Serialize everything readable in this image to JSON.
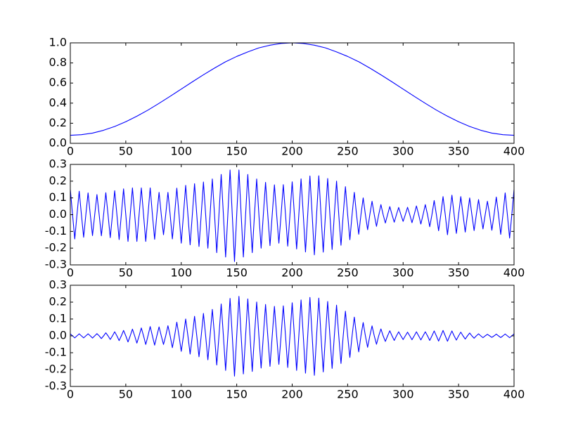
{
  "chart_data": [
    {
      "type": "line",
      "color": "#0000ff",
      "x": [
        0,
        10,
        20,
        30,
        40,
        50,
        60,
        70,
        80,
        90,
        100,
        110,
        120,
        130,
        140,
        150,
        160,
        170,
        180,
        190,
        200,
        210,
        220,
        230,
        240,
        250,
        260,
        270,
        280,
        290,
        300,
        310,
        320,
        330,
        340,
        350,
        360,
        370,
        380,
        390,
        400
      ],
      "values": [
        0.08,
        0.086,
        0.102,
        0.13,
        0.168,
        0.215,
        0.27,
        0.331,
        0.398,
        0.468,
        0.54,
        0.612,
        0.682,
        0.749,
        0.812,
        0.865,
        0.91,
        0.95,
        0.977,
        0.994,
        1.0,
        0.994,
        0.977,
        0.95,
        0.91,
        0.865,
        0.812,
        0.749,
        0.682,
        0.612,
        0.54,
        0.468,
        0.398,
        0.331,
        0.27,
        0.215,
        0.168,
        0.13,
        0.102,
        0.086,
        0.08
      ],
      "xlim": [
        0,
        400
      ],
      "xticks": [
        0,
        50,
        100,
        150,
        200,
        250,
        300,
        350,
        400
      ],
      "ylim": [
        0,
        1
      ],
      "yticks": [
        {
          "value": 0,
          "label": "0.0"
        },
        0.2,
        0.4,
        0.6,
        0.8,
        {
          "value": 1,
          "label": "1.0"
        }
      ]
    },
    {
      "type": "line",
      "color": "#0000ff",
      "x": [
        0,
        2,
        4,
        6,
        8,
        10,
        12,
        14,
        16,
        18,
        20,
        22,
        24,
        26,
        28,
        30,
        32,
        34,
        36,
        38,
        40,
        42,
        44,
        46,
        48,
        50,
        52,
        54,
        56,
        58,
        60,
        62,
        64,
        66,
        68,
        70,
        72,
        74,
        76,
        78,
        80,
        82,
        84,
        86,
        88,
        90,
        92,
        94,
        96,
        98,
        100,
        102,
        104,
        106,
        108,
        110,
        112,
        114,
        116,
        118,
        120,
        122,
        124,
        126,
        128,
        130,
        132,
        134,
        136,
        138,
        140,
        142,
        144,
        146,
        148,
        150,
        152,
        154,
        156,
        158,
        160,
        162,
        164,
        166,
        168,
        170,
        172,
        174,
        176,
        178,
        180,
        182,
        184,
        186,
        188,
        190,
        192,
        194,
        196,
        198,
        200,
        202,
        204,
        206,
        208,
        210,
        212,
        214,
        216,
        218,
        220,
        222,
        224,
        226,
        228,
        230,
        232,
        234,
        236,
        238,
        240,
        242,
        244,
        246,
        248,
        250,
        252,
        254,
        256,
        258,
        260,
        262,
        264,
        266,
        268,
        270,
        272,
        274,
        276,
        278,
        280,
        282,
        284,
        286,
        288,
        290,
        292,
        294,
        296,
        298,
        300,
        302,
        304,
        306,
        308,
        310,
        312,
        314,
        316,
        318,
        320,
        322,
        324,
        326,
        328,
        330,
        332,
        334,
        336,
        338,
        340,
        342,
        344,
        346,
        348,
        350,
        352,
        354,
        356,
        358,
        360,
        362,
        364,
        366,
        368,
        370,
        372,
        374,
        376,
        378,
        380,
        382,
        384,
        386,
        388,
        390,
        392,
        394,
        396,
        398,
        400
      ],
      "values": [
        0.15,
        0,
        -0.145,
        0,
        0.14,
        0,
        -0.135,
        0,
        0.13,
        0,
        -0.125,
        0,
        0.12,
        0,
        -0.126,
        0,
        0.131,
        0,
        -0.137,
        0,
        0.143,
        0,
        -0.149,
        0,
        0.154,
        0,
        -0.16,
        0,
        0.16,
        0,
        -0.16,
        0,
        0.16,
        0,
        -0.16,
        0,
        0.16,
        0,
        -0.147,
        0,
        0.133,
        0,
        -0.12,
        0,
        0.133,
        0,
        -0.145,
        0,
        0.158,
        0,
        -0.17,
        0,
        0.175,
        0,
        -0.18,
        0,
        0.185,
        0,
        -0.19,
        0,
        0.195,
        0,
        -0.2,
        0,
        0.213,
        0,
        -0.227,
        0,
        0.24,
        0,
        -0.253,
        0,
        0.267,
        0,
        -0.28,
        0,
        0.267,
        0,
        -0.253,
        0,
        0.24,
        0,
        -0.227,
        0,
        0.213,
        0,
        -0.2,
        0,
        0.193,
        0,
        -0.185,
        0,
        0.178,
        0,
        -0.17,
        0,
        0.179,
        0,
        -0.188,
        0,
        0.196,
        0,
        -0.205,
        0,
        0.214,
        0,
        -0.223,
        0,
        0.231,
        0,
        -0.24,
        0,
        0.232,
        0,
        -0.224,
        0,
        0.216,
        0,
        -0.208,
        0,
        0.2,
        0,
        -0.183,
        0,
        0.167,
        0,
        -0.15,
        0,
        0.133,
        0,
        -0.117,
        0,
        0.1,
        0,
        -0.09,
        0,
        0.08,
        0,
        -0.07,
        0,
        0.06,
        0,
        -0.05,
        0,
        0.048,
        0,
        -0.045,
        0,
        0.043,
        0,
        -0.04,
        0,
        0.044,
        0,
        -0.048,
        0,
        0.052,
        0,
        -0.056,
        0,
        0.06,
        0,
        -0.072,
        0,
        0.084,
        0,
        -0.096,
        0,
        0.108,
        0,
        -0.12,
        0,
        0.116,
        0,
        -0.112,
        0,
        0.108,
        0,
        -0.104,
        0,
        0.1,
        0,
        -0.095,
        0,
        0.09,
        0,
        -0.085,
        0,
        0.08,
        0,
        -0.093,
        0,
        0.105,
        0,
        -0.118,
        0,
        0.13,
        0,
        -0.14,
        0,
        0.15
      ],
      "xlim": [
        0,
        400
      ],
      "xticks": [
        0,
        50,
        100,
        150,
        200,
        250,
        300,
        350,
        400
      ],
      "ylim": [
        -0.3,
        0.3
      ],
      "yticks": [
        -0.3,
        -0.2,
        -0.1,
        {
          "value": 0,
          "label": "0.0"
        },
        0.1,
        0.2,
        0.3
      ]
    },
    {
      "type": "line",
      "color": "#0000ff",
      "x": [
        0,
        2,
        4,
        6,
        8,
        10,
        12,
        14,
        16,
        18,
        20,
        22,
        24,
        26,
        28,
        30,
        32,
        34,
        36,
        38,
        40,
        42,
        44,
        46,
        48,
        50,
        52,
        54,
        56,
        58,
        60,
        62,
        64,
        66,
        68,
        70,
        72,
        74,
        76,
        78,
        80,
        82,
        84,
        86,
        88,
        90,
        92,
        94,
        96,
        98,
        100,
        102,
        104,
        106,
        108,
        110,
        112,
        114,
        116,
        118,
        120,
        122,
        124,
        126,
        128,
        130,
        132,
        134,
        136,
        138,
        140,
        142,
        144,
        146,
        148,
        150,
        152,
        154,
        156,
        158,
        160,
        162,
        164,
        166,
        168,
        170,
        172,
        174,
        176,
        178,
        180,
        182,
        184,
        186,
        188,
        190,
        192,
        194,
        196,
        198,
        200,
        202,
        204,
        206,
        208,
        210,
        212,
        214,
        216,
        218,
        220,
        222,
        224,
        226,
        228,
        230,
        232,
        234,
        236,
        238,
        240,
        242,
        244,
        246,
        248,
        250,
        252,
        254,
        256,
        258,
        260,
        262,
        264,
        266,
        268,
        270,
        272,
        274,
        276,
        278,
        280,
        282,
        284,
        286,
        288,
        290,
        292,
        294,
        296,
        298,
        300,
        302,
        304,
        306,
        308,
        310,
        312,
        314,
        316,
        318,
        320,
        322,
        324,
        326,
        328,
        330,
        332,
        334,
        336,
        338,
        340,
        342,
        344,
        346,
        348,
        350,
        352,
        354,
        356,
        358,
        360,
        362,
        364,
        366,
        368,
        370,
        372,
        374,
        376,
        378,
        380,
        382,
        384,
        386,
        388,
        390,
        392,
        394,
        396,
        398,
        400
      ],
      "values": [
        0.012,
        0,
        -0.012,
        0,
        0.012,
        0,
        -0.012,
        0,
        0.012,
        0,
        -0.013,
        0,
        0.013,
        0,
        -0.016,
        0,
        0.018,
        0,
        -0.021,
        0,
        0.024,
        0,
        -0.028,
        0,
        0.032,
        0,
        -0.036,
        0,
        0.04,
        0,
        -0.043,
        0,
        0.047,
        0,
        -0.051,
        0,
        0.055,
        0,
        -0.055,
        0,
        0.053,
        0,
        -0.051,
        0,
        0.06,
        0,
        -0.07,
        0,
        0.081,
        0,
        -0.092,
        0,
        0.1,
        0,
        -0.108,
        0,
        0.116,
        0,
        -0.124,
        0,
        0.133,
        0,
        -0.142,
        0,
        0.157,
        0,
        -0.173,
        0,
        0.189,
        0,
        -0.205,
        0,
        0.222,
        0,
        -0.239,
        0,
        0.234,
        0,
        -0.226,
        0,
        0.219,
        0,
        -0.211,
        0,
        0.201,
        0,
        -0.191,
        0,
        0.186,
        0,
        -0.181,
        0,
        0.175,
        0,
        -0.169,
        0,
        0.178,
        0,
        -0.188,
        0,
        0.196,
        0,
        -0.205,
        0,
        0.213,
        0,
        -0.221,
        0,
        0.228,
        0,
        -0.234,
        0,
        0.224,
        0,
        -0.214,
        0,
        0.204,
        0,
        -0.193,
        0,
        0.182,
        0,
        -0.164,
        0,
        0.146,
        0,
        -0.128,
        0,
        0.111,
        0,
        -0.095,
        0,
        0.079,
        0,
        -0.068,
        0,
        0.059,
        0,
        -0.05,
        0,
        0.041,
        0,
        -0.033,
        0,
        0.03,
        0,
        -0.027,
        0,
        0.024,
        0,
        -0.022,
        0,
        0.022,
        0,
        -0.023,
        0,
        0.024,
        0,
        -0.024,
        0,
        0.024,
        0,
        -0.027,
        0,
        0.029,
        0,
        -0.031,
        0,
        0.032,
        0,
        -0.032,
        0,
        0.029,
        0,
        -0.025,
        0,
        0.022,
        0,
        -0.019,
        0,
        0.017,
        0,
        -0.014,
        0,
        0.012,
        0,
        -0.011,
        0,
        0.009,
        0,
        -0.009,
        0,
        0.01,
        0,
        -0.01,
        0,
        0.011,
        0,
        -0.011,
        0,
        0.012
      ],
      "xlim": [
        0,
        400
      ],
      "xticks": [
        0,
        50,
        100,
        150,
        200,
        250,
        300,
        350,
        400
      ],
      "ylim": [
        -0.3,
        0.3
      ],
      "yticks": [
        -0.3,
        -0.2,
        -0.1,
        {
          "value": 0,
          "label": "0.0"
        },
        0.1,
        0.2,
        0.3
      ]
    }
  ]
}
